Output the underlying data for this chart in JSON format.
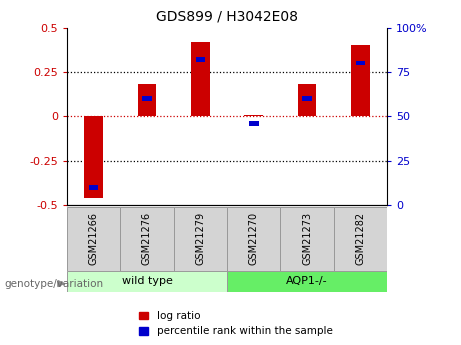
{
  "title": "GDS899 / H3042E08",
  "samples": [
    "GSM21266",
    "GSM21276",
    "GSM21279",
    "GSM21270",
    "GSM21273",
    "GSM21282"
  ],
  "log_ratios": [
    -0.46,
    0.18,
    0.42,
    0.01,
    0.18,
    0.4
  ],
  "percentile_ranks_pct": [
    10,
    60,
    82,
    46,
    60,
    80
  ],
  "ylim": [
    -0.5,
    0.5
  ],
  "y_ticks_left": [
    -0.5,
    -0.25,
    0,
    0.25,
    0.5
  ],
  "y_ticks_right": [
    0,
    25,
    50,
    75,
    100
  ],
  "bar_width": 0.35,
  "blue_bar_width": 0.18,
  "blue_bar_height": 0.025,
  "bar_color_red": "#CC0000",
  "bar_color_blue": "#0000CC",
  "hline_color": "#CC0000",
  "dotted_line_color": "#000000",
  "group_boundary": 2.5,
  "wild_type_color": "#CCFFCC",
  "aqp1_color": "#66EE66",
  "sample_box_color": "#D4D4D4",
  "genotype_label": "genotype/variation",
  "legend_red": "log ratio",
  "legend_blue": "percentile rank within the sample",
  "ylabel_left_color": "#CC0000",
  "ylabel_right_color": "#0000CC"
}
